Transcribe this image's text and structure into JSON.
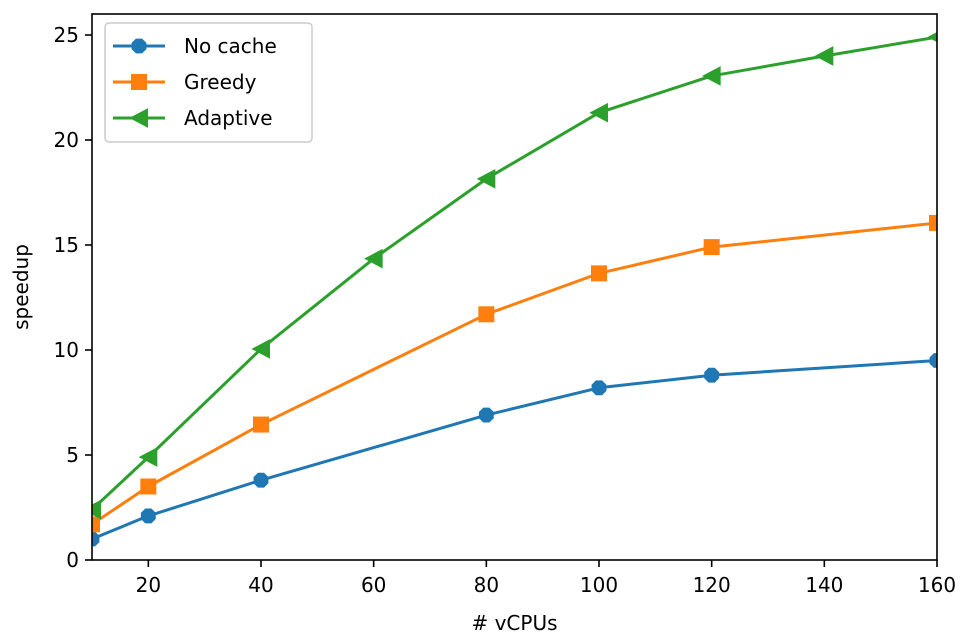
{
  "chart_data": {
    "type": "line",
    "xlabel": "# vCPUs",
    "ylabel": "speedup",
    "xlim": [
      10,
      160
    ],
    "ylim": [
      0,
      26
    ],
    "x_ticks": [
      20,
      40,
      60,
      80,
      100,
      120,
      140,
      160
    ],
    "y_ticks": [
      0,
      5,
      10,
      15,
      20,
      25
    ],
    "grid": false,
    "legend_position": "top-left",
    "series": [
      {
        "name": "No cache",
        "color": "#1f77b4",
        "marker": "octagon",
        "x": [
          10,
          20,
          40,
          80,
          100,
          120,
          160
        ],
        "y": [
          1.0,
          2.1,
          3.8,
          6.9,
          8.2,
          8.8,
          9.5
        ]
      },
      {
        "name": "Greedy",
        "color": "#ff7f0e",
        "marker": "square",
        "x": [
          10,
          20,
          40,
          80,
          100,
          120,
          160
        ],
        "y": [
          1.7,
          3.5,
          6.45,
          11.7,
          13.65,
          14.9,
          16.05
        ]
      },
      {
        "name": "Adaptive",
        "color": "#2ca02c",
        "marker": "triangle-left",
        "x": [
          10,
          20,
          40,
          60,
          80,
          100,
          120,
          140,
          160
        ],
        "y": [
          2.4,
          4.9,
          10.05,
          14.35,
          18.15,
          21.3,
          23.05,
          24.0,
          24.9
        ]
      }
    ]
  }
}
